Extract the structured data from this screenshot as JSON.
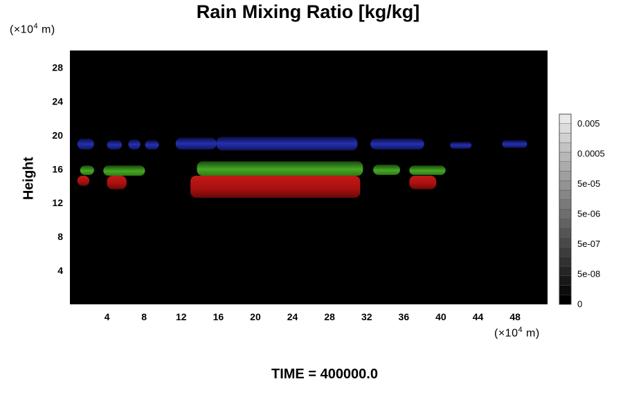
{
  "chart_data": {
    "type": "heatmap",
    "title": "Rain Mixing Ratio [kg/kg]",
    "ylabel": "Height",
    "x_unit": {
      "prefix": "(×10",
      "exp": "4",
      "suffix": " m)"
    },
    "y_unit": {
      "prefix": "(×10",
      "exp": "4",
      "suffix": " m)"
    },
    "xlim": [
      0,
      51.5
    ],
    "ylim": [
      0,
      30
    ],
    "x_ticks": [
      "4",
      "8",
      "12",
      "16",
      "20",
      "24",
      "28",
      "32",
      "36",
      "40",
      "44",
      "48"
    ],
    "y_ticks": [
      "4",
      "8",
      "12",
      "16",
      "20",
      "24",
      "28"
    ],
    "background_color": "#000000",
    "colorbar": {
      "labels": [
        "0",
        "5e-08",
        "5e-07",
        "5e-06",
        "5e-05",
        "0.0005",
        "0.005"
      ],
      "levels": 20
    },
    "regions": [
      {
        "name": "blue",
        "color": "#1e28a0",
        "x": [
          0.8,
          50
        ],
        "y": [
          18.2,
          19.6
        ]
      },
      {
        "name": "green",
        "color": "#3c9a1e",
        "x": [
          0.8,
          41.5
        ],
        "y": [
          15.2,
          17.0
        ]
      },
      {
        "name": "red",
        "color": "#b41414",
        "x": [
          0.8,
          39.5
        ],
        "y": [
          12.5,
          15.2
        ]
      }
    ],
    "blobs": [
      {
        "c": "blue",
        "x0": 0.8,
        "x1": 2.6,
        "y0": 18.3,
        "y1": 19.6
      },
      {
        "c": "blue",
        "x0": 4.0,
        "x1": 5.6,
        "y0": 18.3,
        "y1": 19.4
      },
      {
        "c": "blue",
        "x0": 6.3,
        "x1": 7.6,
        "y0": 18.3,
        "y1": 19.5
      },
      {
        "c": "blue",
        "x0": 8.1,
        "x1": 9.6,
        "y0": 18.3,
        "y1": 19.4
      },
      {
        "c": "blue",
        "x0": 11.4,
        "x1": 15.8,
        "y0": 18.3,
        "y1": 19.7
      },
      {
        "c": "blue",
        "x0": 15.8,
        "x1": 31.0,
        "y0": 18.2,
        "y1": 19.8
      },
      {
        "c": "blue",
        "x0": 32.4,
        "x1": 38.2,
        "y0": 18.3,
        "y1": 19.6
      },
      {
        "c": "blue",
        "x0": 41.0,
        "x1": 43.3,
        "y0": 18.4,
        "y1": 19.2
      },
      {
        "c": "blue",
        "x0": 46.6,
        "x1": 49.3,
        "y0": 18.5,
        "y1": 19.4
      },
      {
        "c": "green",
        "x0": 1.1,
        "x1": 2.6,
        "y0": 15.3,
        "y1": 16.4
      },
      {
        "c": "green",
        "x0": 3.6,
        "x1": 8.1,
        "y0": 15.2,
        "y1": 16.4
      },
      {
        "c": "green",
        "x0": 13.7,
        "x1": 31.6,
        "y0": 15.2,
        "y1": 16.9
      },
      {
        "c": "green",
        "x0": 32.7,
        "x1": 35.6,
        "y0": 15.3,
        "y1": 16.5
      },
      {
        "c": "green",
        "x0": 36.6,
        "x1": 40.5,
        "y0": 15.3,
        "y1": 16.4
      },
      {
        "c": "red",
        "x0": 0.8,
        "x1": 2.1,
        "y0": 14.0,
        "y1": 15.2
      },
      {
        "c": "red",
        "x0": 4.0,
        "x1": 6.1,
        "y0": 13.6,
        "y1": 15.2
      },
      {
        "c": "red",
        "x0": 13.0,
        "x1": 31.3,
        "y0": 12.6,
        "y1": 15.2
      },
      {
        "c": "red",
        "x0": 36.6,
        "x1": 39.5,
        "y0": 13.6,
        "y1": 15.2
      }
    ]
  },
  "time_label": "TIME = 400000.0"
}
